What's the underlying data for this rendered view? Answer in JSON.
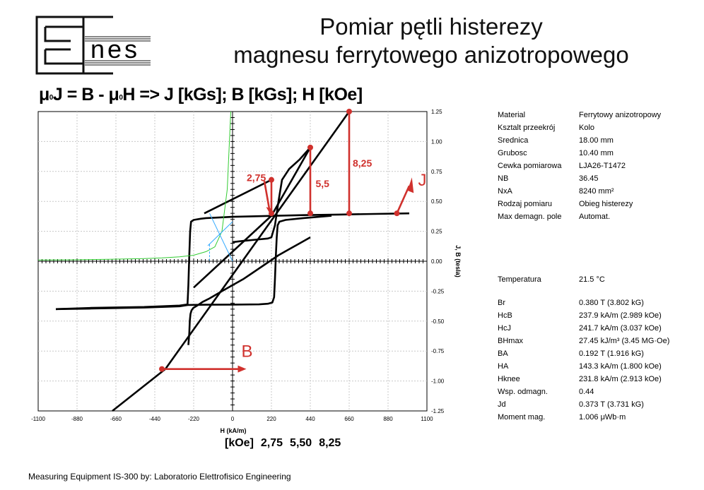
{
  "header": {
    "logo_text": "nes",
    "title_line1": "Pomiar pętli histerezy",
    "title_line2": "magnesu ferrytowego anizotropowego"
  },
  "formula": {
    "mu0_1": "μ",
    "sub0_1": "0",
    "part1": "J = B - ",
    "mu0_2": "μ",
    "sub0_2": "0",
    "part2": "H => J [kGs]; B [kGs]; H [kOe]"
  },
  "chart_data": {
    "type": "line",
    "xlabel": "H (kA/m)",
    "ylabel": "J, B (tesla)",
    "xlim": [
      -1100,
      1100
    ],
    "ylim": [
      -1.25,
      1.25
    ],
    "xticks": [
      "-1100",
      "-880",
      "-660",
      "-440",
      "-220",
      "0",
      "220",
      "440",
      "660",
      "880",
      "1100"
    ],
    "yticks": [
      "1.25",
      "1.00",
      "0.75",
      "0.50",
      "0.25",
      "0.00",
      "-0.25",
      "-0.50",
      "-0.75",
      "-1.00",
      "-1.25"
    ],
    "grid": "dashed",
    "series": [
      {
        "color": "#000000",
        "x": [
          1000,
          800,
          600,
          400,
          250,
          150,
          0,
          -150,
          -180,
          -220,
          -235,
          -240,
          -245,
          -250,
          -255,
          -300,
          -500,
          -800,
          -1000
        ],
        "y": [
          0.4,
          0.395,
          0.39,
          0.385,
          0.38,
          0.376,
          0.371,
          0.36,
          0.355,
          0.345,
          0.33,
          0.25,
          0.05,
          -0.2,
          -0.36,
          -0.37,
          -0.382,
          -0.39,
          -0.4
        ]
      },
      {
        "color": "#000000",
        "x": [
          -1000,
          -800,
          -500,
          -300,
          -250,
          -150,
          0,
          150,
          200,
          225,
          235,
          240,
          245,
          250,
          255,
          265,
          300,
          400,
          560
        ],
        "y": [
          -0.4,
          -0.395,
          -0.387,
          -0.376,
          -0.365,
          -0.363,
          -0.362,
          -0.36,
          -0.355,
          -0.345,
          -0.3,
          -0.15,
          0.05,
          0.2,
          0.3,
          0.33,
          0.345,
          0.36,
          0.38
        ]
      },
      {
        "color": "#000000",
        "x": [
          -250,
          -245,
          -242,
          -238,
          -232,
          -222,
          -200,
          -170,
          -130,
          -60,
          0,
          60,
          110,
          160,
          210,
          260,
          320,
          380,
          440
        ],
        "y": [
          -0.7,
          -0.6,
          -0.5,
          -0.44,
          -0.41,
          -0.39,
          -0.37,
          -0.34,
          -0.31,
          -0.25,
          -0.2,
          -0.15,
          -0.1,
          -0.05,
          0.0,
          0.05,
          0.1,
          0.15,
          0.2
        ]
      },
      {
        "color": "#000000",
        "x": [
          0,
          60,
          130,
          200,
          220,
          240,
          260,
          280,
          320,
          380,
          440
        ],
        "y": [
          0.16,
          0.17,
          0.18,
          0.19,
          0.2,
          0.3,
          0.5,
          0.68,
          0.77,
          0.85,
          0.95
        ]
      },
      {
        "color": "#000000",
        "x": [
          -680,
          -380,
          660
        ],
        "y": [
          -1.25,
          -0.9,
          1.25
        ]
      },
      {
        "color": "#000000",
        "x": [
          -220,
          220,
          440
        ],
        "y": [
          -0.22,
          0.38,
          0.95
        ]
      },
      {
        "color": "#000000",
        "x": [
          -160,
          220
        ],
        "y": [
          0.4,
          0.68
        ]
      },
      {
        "color": "#33cc33",
        "x": [
          -1100,
          -900,
          -700,
          -500,
          -400,
          -300,
          -220,
          -150,
          -100,
          -60,
          -30,
          -10
        ],
        "y": [
          0.01,
          0.012,
          0.016,
          0.022,
          0.028,
          0.037,
          0.05,
          0.08,
          0.12,
          0.25,
          0.6,
          1.25
        ]
      },
      {
        "color": "#33aaff",
        "x": [
          -130,
          0
        ],
        "y": [
          0.4,
          0.0
        ]
      },
      {
        "color": "#33aaff",
        "x": [
          -140,
          0
        ],
        "y": [
          0.13,
          0.33
        ]
      },
      {
        "color": "#33aaff",
        "x": [
          -130,
          -130
        ],
        "y": [
          0.14,
          0.0
        ]
      }
    ],
    "annotations": [
      {
        "text": "2,75",
        "color": "#d0312d",
        "x": 80,
        "y": 0.67
      },
      {
        "text": "5,5",
        "color": "#d0312d",
        "x": 470,
        "y": 0.62
      },
      {
        "text": "8,25",
        "color": "#d0312d",
        "x": 680,
        "y": 0.79
      },
      {
        "text": "J",
        "color": "#d0312d",
        "x": 1050,
        "y": 0.63
      },
      {
        "text": "B",
        "color": "#d0312d",
        "x": 50,
        "y": -0.8
      }
    ]
  },
  "params": [
    {
      "label": "Material",
      "value": "Ferrytowy anizotropowy"
    },
    {
      "label": "Ksztalt przeekrój",
      "value": "Kolo"
    },
    {
      "label": "Srednica",
      "value": "18.00 mm"
    },
    {
      "label": "Grubosc",
      "value": "10.40 mm"
    },
    {
      "label": "Cewka pomiarowa",
      "value": "LJA26-T1472"
    },
    {
      "label": "NB",
      "value": "36.45"
    },
    {
      "label": "NxA",
      "value": "8240 mm²"
    },
    {
      "label": "Rodzaj pomiaru",
      "value": "Obieg histerezy"
    },
    {
      "label": "Max demagn. pole",
      "value": "Automat."
    },
    {
      "label": "Temperatura",
      "value": "21.5 °C"
    },
    {
      "label": "Br",
      "value": "0.380 T (3.802 kG)"
    },
    {
      "label": "HcB",
      "value": "237.9 kA/m (2.989 kOe)"
    },
    {
      "label": "HcJ",
      "value": "241.7 kA/m (3.037 kOe)"
    },
    {
      "label": "BHmax",
      "value": "27.45 kJ/m³ (3.45 MG·Oe)"
    },
    {
      "label": "BA",
      "value": "0.192 T (1.916 kG)"
    },
    {
      "label": "HA",
      "value": "143.3 kA/m (1.800 kOe)"
    },
    {
      "label": "Hknee",
      "value": "231.8 kA/m (2.913 kOe)"
    },
    {
      "label": "Wsp. odmagn.",
      "value": "0.44"
    },
    {
      "label": "Jd",
      "value": "0.373 T (3.731 kG)"
    },
    {
      "label": "Moment mag.",
      "value": "1.006 μWb·m"
    }
  ],
  "koe_row": {
    "unit": "[kOe]",
    "v1": "2,75",
    "v2": "5,50",
    "v3": "8,25"
  },
  "footer": {
    "text": "Measuring Equipment IS-300 by: Laboratorio Elettrofisico Engineering"
  },
  "colors": {
    "accent": "#d0312d",
    "curve": "#000000",
    "green": "#33cc33",
    "blue": "#33aaff"
  }
}
